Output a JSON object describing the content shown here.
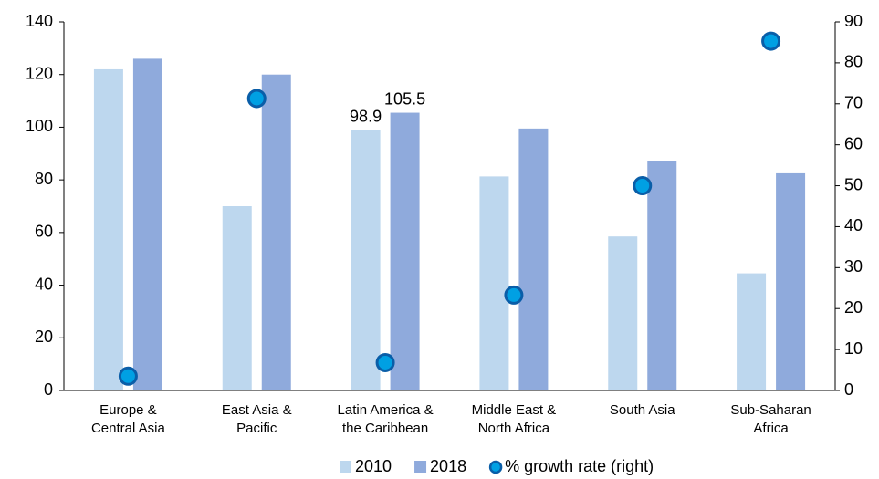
{
  "chart_data": {
    "type": "bar",
    "categories": [
      [
        "Europe &",
        "Central Asia"
      ],
      [
        "East Asia &",
        "Pacific"
      ],
      [
        "Latin America &",
        "the Caribbean"
      ],
      [
        "Middle East &",
        "North Africa"
      ],
      [
        "South Asia"
      ],
      [
        "Sub-Saharan",
        "Africa"
      ]
    ],
    "series": [
      {
        "name": "2010",
        "color": "#bdd7ee",
        "values": [
          122,
          70,
          98.9,
          81.3,
          58.5,
          44.5
        ],
        "value_labels": [
          null,
          null,
          "98.9",
          null,
          null,
          null
        ]
      },
      {
        "name": "2018",
        "color": "#8faadc",
        "values": [
          126,
          120,
          105.5,
          99.5,
          87,
          82.5
        ],
        "value_labels": [
          null,
          null,
          "105.5",
          null,
          null,
          null
        ]
      },
      {
        "name": "% growth rate (right)",
        "type": "scatter",
        "axis": "y2",
        "color": "#00a0e3",
        "values": [
          3.5,
          71.3,
          6.8,
          23.3,
          50,
          85.3
        ]
      }
    ],
    "ylim": [
      0,
      140
    ],
    "yticks": [
      0,
      20,
      40,
      60,
      80,
      100,
      120,
      140
    ],
    "y2lim": [
      0,
      90
    ],
    "y2ticks": [
      0,
      10,
      20,
      30,
      40,
      50,
      60,
      70,
      80,
      90
    ],
    "legend": "bottom"
  }
}
